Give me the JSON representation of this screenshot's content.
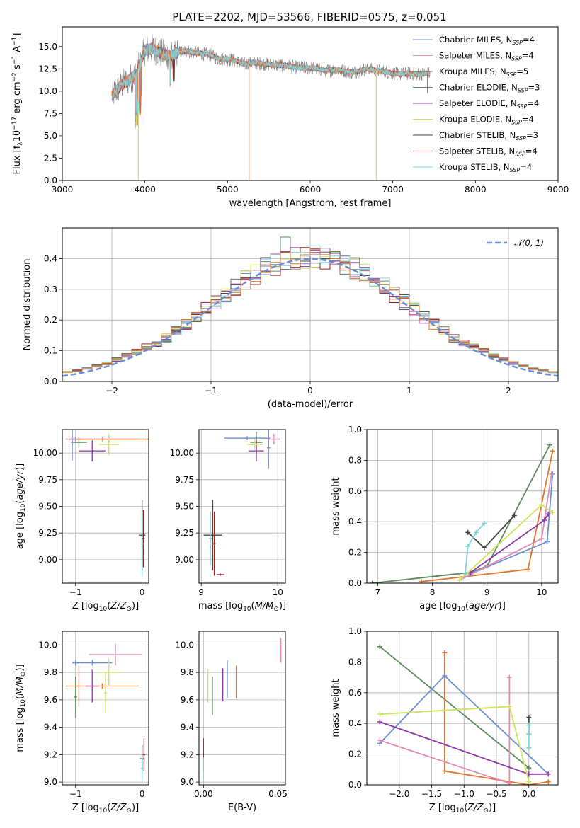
{
  "page": {
    "title": "PLATE=2202, MJD=53566, FIBERID=0575, z=0.051"
  },
  "colors": {
    "Chabrier MILES": "#6a8fd6",
    "Salpeter MILES": "#e28bb4",
    "Kroupa MILES": "#777777",
    "Chabrier ELODIE": "#5c8a5c",
    "Salpeter ELODIE": "#8e35a8",
    "Kroupa ELODIE": "#cfe35a",
    "Chabrier STELIB": "#444444",
    "Salpeter STELIB": "#a31f1f",
    "Kroupa STELIB": "#7fd4d8",
    "orange_series": "#e0752a",
    "grid": "#b0b0b0",
    "normal_curve": "#6a8fd6"
  },
  "chart_data": [
    {
      "id": "spectrum",
      "type": "line",
      "xlabel": "wavelength [Angstrom, rest frame]",
      "ylabel": "Flux [f_λ 10^-17 erg cm^-2 s^-1 A^-1]",
      "xlim": [
        3000,
        9000
      ],
      "ylim": [
        0,
        17.2
      ],
      "xticks": [
        3000,
        4000,
        5000,
        6000,
        7000,
        8000,
        9000
      ],
      "yticks": [
        0.0,
        2.5,
        5.0,
        7.5,
        10.0,
        12.5,
        15.0
      ],
      "legend_position": "top-right",
      "legend": [
        {
          "label": "Chabrier MILES, N",
          "sub": "SSP",
          "tail": "=4",
          "color": "#6a8fd6"
        },
        {
          "label": "Salpeter MILES, N",
          "sub": "SSP",
          "tail": "=4",
          "color": "#e28bb4"
        },
        {
          "label": "Kroupa MILES, N",
          "sub": "SSP",
          "tail": "=5",
          "color": "#777777"
        },
        {
          "label": "Chabrier ELODIE, N",
          "sub": "SSP",
          "tail": "=3",
          "color": "#5c8a5c"
        },
        {
          "label": "Salpeter ELODIE, N",
          "sub": "SSP",
          "tail": "=4",
          "color": "#8e35a8"
        },
        {
          "label": "Kroupa ELODIE, N",
          "sub": "SSP",
          "tail": "=4",
          "color": "#cfe35a"
        },
        {
          "label": "Chabrier STELIB, N",
          "sub": "SSP",
          "tail": "=3",
          "color": "#444444"
        },
        {
          "label": "Salpeter STELIB, N",
          "sub": "SSP",
          "tail": "=4",
          "color": "#a31f1f"
        },
        {
          "label": "Kroupa STELIB, N",
          "sub": "SSP",
          "tail": "=4",
          "color": "#7fd4d8"
        }
      ],
      "continuum": [
        [
          3600,
          9.5
        ],
        [
          3700,
          10.5
        ],
        [
          3800,
          11.2
        ],
        [
          3900,
          12.0
        ],
        [
          4000,
          14.6
        ],
        [
          4100,
          14.8
        ],
        [
          4200,
          14.2
        ],
        [
          4300,
          14.0
        ],
        [
          4400,
          14.3
        ],
        [
          4500,
          14.5
        ],
        [
          4600,
          14.3
        ],
        [
          4700,
          14.2
        ],
        [
          4800,
          14.0
        ],
        [
          4900,
          13.6
        ],
        [
          5000,
          13.6
        ],
        [
          5100,
          13.4
        ],
        [
          5200,
          13.0
        ],
        [
          5300,
          13.2
        ],
        [
          5400,
          13.1
        ],
        [
          5500,
          13.0
        ],
        [
          5600,
          12.9
        ],
        [
          5700,
          12.9
        ],
        [
          5800,
          12.7
        ],
        [
          5900,
          12.6
        ],
        [
          6000,
          12.6
        ],
        [
          6100,
          12.5
        ],
        [
          6200,
          12.3
        ],
        [
          6300,
          12.4
        ],
        [
          6400,
          12.3
        ],
        [
          6500,
          12.1
        ],
        [
          6600,
          12.3
        ],
        [
          6700,
          12.5
        ],
        [
          6800,
          12.3
        ],
        [
          6900,
          12.2
        ],
        [
          7000,
          12.0
        ],
        [
          7100,
          11.9
        ],
        [
          7200,
          12.0
        ],
        [
          7300,
          11.9
        ],
        [
          7400,
          12.0
        ]
      ],
      "spikes": [
        {
          "x": 3920,
          "y": 0.0
        },
        {
          "x": 5260,
          "y": 0.0
        },
        {
          "x": 6800,
          "y": 0.0
        },
        {
          "x": 7420,
          "y": 9.8
        }
      ]
    },
    {
      "id": "residuals",
      "type": "histogram",
      "xlabel": "(data-model)/error",
      "ylabel": "Normed distribution",
      "xlim": [
        -2.5,
        2.5
      ],
      "ylim": [
        0,
        0.5
      ],
      "xticks": [
        -2,
        -1,
        0,
        1,
        2
      ],
      "yticks": [
        0.0,
        0.1,
        0.2,
        0.3,
        0.4
      ],
      "legend": [
        {
          "label": "N(0,1)",
          "style": "dashed",
          "color": "#6a8fd6"
        }
      ],
      "legend_position": "top-right",
      "bin_width": 0.1,
      "normal": {
        "mu": 0,
        "sigma": 1
      }
    },
    {
      "id": "age_vs_Z",
      "type": "errorbar",
      "xlabel": "Z [log10(Z/Z☉)]",
      "ylabel": "age [log10(age/yr)]",
      "xlim": [
        -1.2,
        0.1
      ],
      "ylim": [
        8.78,
        10.22
      ],
      "xticks": [
        -1,
        0
      ],
      "yticks": [
        9.0,
        9.25,
        9.5,
        9.75,
        10.0
      ],
      "points": [
        {
          "x": -1.0,
          "y": 10.13,
          "xerr": 0.1,
          "yerr": 0.02,
          "color": "#6a8fd6"
        },
        {
          "x": -0.6,
          "y": 10.13,
          "xerr": 0.55,
          "yerr": 0.02,
          "color": "#e28bb4"
        },
        {
          "x": -0.5,
          "y": 10.13,
          "xerr": 0.6,
          "yerr": 0.02,
          "color": "#e0752a"
        },
        {
          "x": -0.95,
          "y": 10.1,
          "xerr": 0.12,
          "yerr": 0.05,
          "color": "#5c8a5c"
        },
        {
          "x": -0.75,
          "y": 10.02,
          "xerr": 0.2,
          "yerr": 0.1,
          "color": "#8e35a8"
        },
        {
          "x": -0.5,
          "y": 10.08,
          "xerr": 0.15,
          "yerr": 0.1,
          "color": "#cfe35a"
        },
        {
          "x": -1.05,
          "y": 10.13,
          "xerr": 0.02,
          "yerr": 0.2,
          "color": "#6a8fd6"
        },
        {
          "x": 0.0,
          "y": 9.23,
          "xerr": 0.05,
          "yerr": 0.33,
          "color": "#444444"
        },
        {
          "x": 0.02,
          "y": 9.2,
          "xerr": 0.02,
          "yerr": 0.27,
          "color": "#a31f1f"
        },
        {
          "x": 0.0,
          "y": 9.15,
          "xerr": 0.02,
          "yerr": 0.3,
          "color": "#7fd4d8"
        }
      ]
    },
    {
      "id": "age_vs_mass",
      "type": "errorbar",
      "xlabel": "mass [log10(M/M☉)]",
      "ylabel": "",
      "xlim": [
        8.97,
        10.1
      ],
      "ylim": [
        8.78,
        10.22
      ],
      "xticks": [
        9,
        10
      ],
      "yticks": [
        9.0,
        9.25,
        9.5,
        9.75,
        10.0
      ],
      "points": [
        {
          "x": 9.6,
          "y": 10.14,
          "xerr": 0.3,
          "yerr": 0.02,
          "color": "#6a8fd6"
        },
        {
          "x": 9.95,
          "y": 10.13,
          "xerr": 0.08,
          "yerr": 0.05,
          "color": "#e28bb4"
        },
        {
          "x": 9.72,
          "y": 10.1,
          "xerr": 0.08,
          "yerr": 0.1,
          "color": "#5c8a5c"
        },
        {
          "x": 9.72,
          "y": 10.02,
          "xerr": 0.1,
          "yerr": 0.1,
          "color": "#8e35a8"
        },
        {
          "x": 9.7,
          "y": 10.08,
          "xerr": 0.1,
          "yerr": 0.05,
          "color": "#cfe35a"
        },
        {
          "x": 9.88,
          "y": 10.05,
          "xerr": 0.02,
          "yerr": 0.2,
          "color": "#6a8fd6"
        },
        {
          "x": 9.15,
          "y": 9.23,
          "xerr": 0.12,
          "yerr": 0.33,
          "color": "#444444"
        },
        {
          "x": 9.17,
          "y": 9.15,
          "xerr": 0.02,
          "yerr": 0.3,
          "color": "#a31f1f"
        },
        {
          "x": 9.12,
          "y": 9.2,
          "xerr": 0.02,
          "yerr": 0.25,
          "color": "#7fd4d8"
        },
        {
          "x": 9.25,
          "y": 8.86,
          "xerr": 0.05,
          "yerr": 0.01,
          "color": "#a31f1f"
        }
      ]
    },
    {
      "id": "mass_weight_vs_age",
      "type": "line",
      "xlabel": "age [log10(age/yr)]",
      "ylabel": "mass weight",
      "xlim": [
        6.8,
        10.3
      ],
      "ylim": [
        0,
        1
      ],
      "xticks": [
        7,
        8,
        9,
        10
      ],
      "yticks": [
        0.0,
        0.2,
        0.4,
        0.6,
        0.8,
        1.0
      ],
      "series": [
        {
          "color": "#5c8a5c",
          "x": [
            6.9,
            8.7,
            9.0,
            10.15
          ],
          "y": [
            0.0,
            0.07,
            0.11,
            0.9
          ]
        },
        {
          "color": "#e0752a",
          "x": [
            7.8,
            9.75,
            10.2
          ],
          "y": [
            0.01,
            0.09,
            0.86
          ]
        },
        {
          "color": "#6a8fd6",
          "x": [
            8.7,
            10.1,
            10.2
          ],
          "y": [
            0.06,
            0.27,
            0.71
          ]
        },
        {
          "color": "#e28bb4",
          "x": [
            8.5,
            10.0,
            10.18
          ],
          "y": [
            0.02,
            0.29,
            0.71
          ]
        },
        {
          "color": "#8e35a8",
          "x": [
            8.7,
            10.05,
            10.12
          ],
          "y": [
            0.07,
            0.41,
            0.45
          ]
        },
        {
          "color": "#cfe35a",
          "x": [
            8.5,
            10.0,
            10.2
          ],
          "y": [
            0.02,
            0.51,
            0.46
          ]
        },
        {
          "color": "#444444",
          "x": [
            8.65,
            8.95,
            9.5
          ],
          "y": [
            0.33,
            0.23,
            0.44
          ]
        },
        {
          "color": "#7fd4d8",
          "x": [
            8.6,
            8.65,
            8.8,
            8.95
          ],
          "y": [
            0.06,
            0.24,
            0.33,
            0.39
          ]
        }
      ]
    },
    {
      "id": "mass_vs_Z",
      "type": "errorbar",
      "xlabel": "Z [log10(Z/Z☉)]",
      "ylabel": "mass [log10(M/M☉)]",
      "xlim": [
        -1.2,
        0.1
      ],
      "ylim": [
        8.98,
        10.1
      ],
      "xticks": [
        -1,
        0
      ],
      "yticks": [
        9.0,
        9.2,
        9.4,
        9.6,
        9.8,
        10.0
      ],
      "points": [
        {
          "x": -0.4,
          "y": 9.93,
          "xerr": 0.4,
          "yerr": 0.08,
          "color": "#e28bb4"
        },
        {
          "x": -1.0,
          "y": 9.87,
          "xerr": 0.05,
          "yerr": 0.02,
          "color": "#6a8fd6"
        },
        {
          "x": -0.75,
          "y": 9.87,
          "xerr": 0.3,
          "yerr": 0.02,
          "color": "#6a8fd6"
        },
        {
          "x": -0.5,
          "y": 9.8,
          "xerr": 0.15,
          "yerr": 0.1,
          "color": "#cfe35a"
        },
        {
          "x": -0.95,
          "y": 9.7,
          "xerr": 0.03,
          "yerr": 0.15,
          "color": "#e0752a"
        },
        {
          "x": -0.6,
          "y": 9.7,
          "xerr": 0.55,
          "yerr": 0.02,
          "color": "#e0752a"
        },
        {
          "x": -0.75,
          "y": 9.7,
          "xerr": 0.1,
          "yerr": 0.12,
          "color": "#8e35a8"
        },
        {
          "x": -1.0,
          "y": 9.62,
          "xerr": 0.02,
          "yerr": 0.15,
          "color": "#5c8a5c"
        },
        {
          "x": -0.55,
          "y": 9.65,
          "xerr": 0.02,
          "yerr": 0.15,
          "color": "#cfe35a"
        },
        {
          "x": 0.0,
          "y": 9.17,
          "xerr": 0.04,
          "yerr": 0.1,
          "color": "#444444"
        },
        {
          "x": 0.03,
          "y": 9.2,
          "xerr": 0.02,
          "yerr": 0.12,
          "color": "#a31f1f"
        },
        {
          "x": 0.0,
          "y": 9.1,
          "xerr": 0.02,
          "yerr": 0.08,
          "color": "#7fd4d8"
        }
      ]
    },
    {
      "id": "mass_vs_ebv",
      "type": "errorbar",
      "xlabel": "E(B-V)",
      "ylabel": "",
      "xlim": [
        -0.003,
        0.055
      ],
      "ylim": [
        8.98,
        10.1
      ],
      "xticks": [
        0.0,
        0.05
      ],
      "xtick_labels": [
        "0.00",
        "0.05"
      ],
      "yticks": [
        9.0,
        9.2,
        9.4,
        9.6,
        9.8,
        10.0
      ],
      "points": [
        {
          "x": 0.052,
          "y": 9.96,
          "xerr": 0.0,
          "yerr": 0.09,
          "color": "#e28bb4"
        },
        {
          "x": 0.016,
          "y": 9.75,
          "xerr": 0.0,
          "yerr": 0.14,
          "color": "#6a8fd6"
        },
        {
          "x": 0.022,
          "y": 9.73,
          "xerr": 0.0,
          "yerr": 0.12,
          "color": "#e0752a"
        },
        {
          "x": 0.003,
          "y": 9.7,
          "xerr": 0.0,
          "yerr": 0.12,
          "color": "#cfe35a"
        },
        {
          "x": 0.013,
          "y": 9.71,
          "xerr": 0.0,
          "yerr": 0.12,
          "color": "#8e35a8"
        },
        {
          "x": 0.006,
          "y": 9.63,
          "xerr": 0.0,
          "yerr": 0.14,
          "color": "#5c8a5c"
        },
        {
          "x": 0.0,
          "y": 9.2,
          "xerr": 0.0,
          "yerr": 0.12,
          "color": "#a31f1f"
        },
        {
          "x": 0.0,
          "y": 9.1,
          "xerr": 0.0,
          "yerr": 0.08,
          "color": "#7fd4d8"
        }
      ]
    },
    {
      "id": "mass_weight_vs_Z",
      "type": "line",
      "xlabel": "Z [log10(Z/Z☉)]",
      "ylabel": "mass weight",
      "xlim": [
        -2.5,
        0.45
      ],
      "ylim": [
        0,
        1
      ],
      "xticks": [
        -2.0,
        -1.5,
        -1.0,
        -0.5,
        0.0
      ],
      "yticks": [
        0.0,
        0.2,
        0.4,
        0.6,
        0.8,
        1.0
      ],
      "series": [
        {
          "color": "#5c8a5c",
          "x": [
            -2.3,
            0.0
          ],
          "y": [
            0.9,
            0.11
          ]
        },
        {
          "color": "#e0752a",
          "x": [
            -1.3,
            -1.3,
            0.0,
            0.3
          ],
          "y": [
            0.86,
            0.09,
            0.0,
            0.02
          ]
        },
        {
          "color": "#6a8fd6",
          "x": [
            -2.3,
            -1.3,
            0.3
          ],
          "y": [
            0.27,
            0.71,
            0.07
          ]
        },
        {
          "color": "#e28bb4",
          "x": [
            -2.3,
            -0.3,
            -0.3
          ],
          "y": [
            0.29,
            0.01,
            0.7
          ]
        },
        {
          "color": "#8e35a8",
          "x": [
            -2.3,
            0.0,
            0.3
          ],
          "y": [
            0.41,
            0.07,
            0.07
          ]
        },
        {
          "color": "#cfe35a",
          "x": [
            -2.3,
            -0.3,
            0.0
          ],
          "y": [
            0.46,
            0.51,
            0.02
          ]
        },
        {
          "color": "#444444",
          "x": [
            0.0,
            0.0
          ],
          "y": [
            0.33,
            0.44
          ]
        },
        {
          "color": "#7fd4d8",
          "x": [
            0.0,
            0.0,
            0.0
          ],
          "y": [
            0.24,
            0.33,
            0.39
          ]
        }
      ]
    }
  ]
}
